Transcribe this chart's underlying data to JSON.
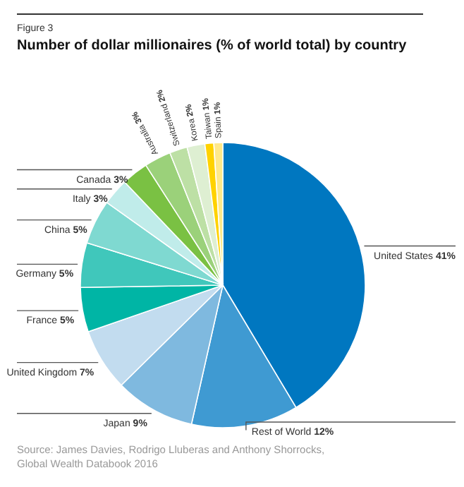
{
  "chart_data": {
    "type": "pie",
    "title": "Number of dollar millionaires (% of world total) by country",
    "categories": [
      "United States",
      "Rest of World",
      "Japan",
      "United Kingdom",
      "France",
      "Germany",
      "China",
      "Italy",
      "Canada",
      "Australia",
      "Switzerland",
      "Korea",
      "Taiwan",
      "Spain"
    ],
    "values": [
      41,
      12,
      9,
      7,
      5,
      5,
      5,
      3,
      3,
      3,
      2,
      2,
      1,
      1
    ],
    "colors": [
      "#0077c0",
      "#3f9ad2",
      "#7fb9df",
      "#c2dcef",
      "#00b5a5",
      "#40c7bb",
      "#7fd9d1",
      "#c0ecea",
      "#7ac143",
      "#9bd17a",
      "#bde0a5",
      "#deefd2",
      "#ffd200",
      "#ffe98a"
    ],
    "value_labels": [
      "41%",
      "12%",
      "9%",
      "7%",
      "5%",
      "5%",
      "5%",
      "3%",
      "3%",
      "3%",
      "2%",
      "2%",
      "1%",
      "1%"
    ],
    "annotations": [
      "Figure 3",
      "Source: James Davies, Rodrigo Lluberas and Anthony Shorrocks, Global Wealth Databook 2016"
    ]
  }
}
